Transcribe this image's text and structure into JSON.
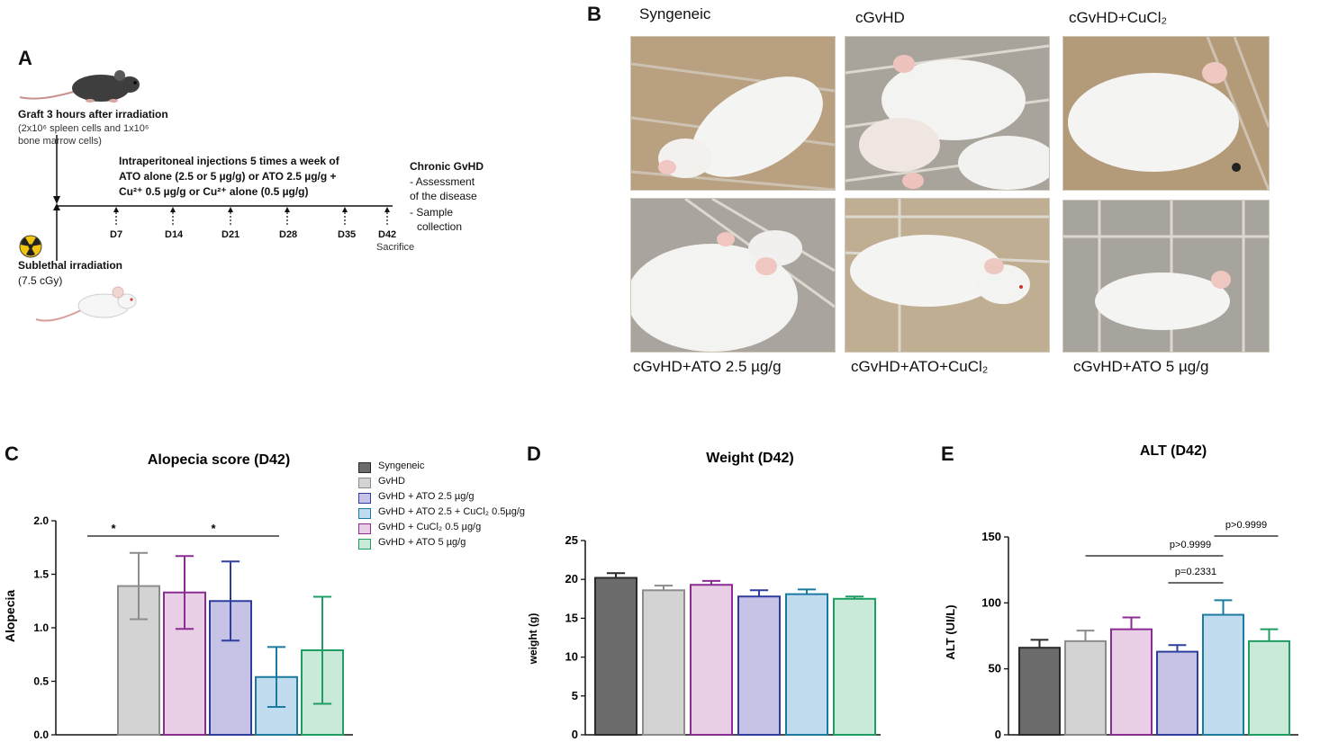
{
  "panels": {
    "a": "A",
    "b": "B",
    "c": "C",
    "d": "D",
    "e": "E"
  },
  "panel_a": {
    "graft_title": "Graft 3 hours after irradiation",
    "graft_cells_line1": "(2x10⁶ spleen cells and 1x10⁶",
    "graft_cells_line2": "bone marrow cells)",
    "injection_line1": "Intraperitoneal injections 5 times a week of",
    "injection_line2": "ATO alone (2.5 or 5 µg/g) or ATO 2.5 µg/g +",
    "injection_line3": "Cu²⁺ 0.5 µg/g or Cu²⁺ alone (0.5 µg/g)",
    "chronic_title": "Chronic GvHD",
    "chronic_line1": "- Assessment",
    "chronic_line2": "of the disease",
    "chronic_line3": "- Sample",
    "chronic_line4": "collection",
    "days": [
      "D7",
      "D14",
      "D21",
      "D28",
      "D35",
      "D42"
    ],
    "sacrifice": "Sacrifice",
    "irradiation_title": "Sublethal irradiation",
    "irradiation_dose": "(7.5 cGy)"
  },
  "panel_b": {
    "labels": [
      "Syngeneic",
      "cGvHD",
      "cGvHD+CuCl₂",
      "cGvHD+ATO 2.5 µg/g",
      "cGvHD+ATO+CuCl₂",
      "cGvHD+ATO 5 µg/g"
    ]
  },
  "legend": {
    "items": [
      "Syngeneic",
      "GvHD",
      "GvHD + ATO 2.5 µg/g",
      "GvHD + ATO 2.5 + CuCl₂ 0.5µg/g",
      "GvHD + CuCl₂ 0.5 µg/g",
      "GvHD + ATO 5 µg/g"
    ]
  },
  "colors": {
    "syngeneic_fill": "#6b6b6b",
    "syngeneic_edge": "#2a2a2a",
    "gvhd_fill": "#d3d3d3",
    "gvhd_edge": "#8c8c8c",
    "ato25_fill": "#c7c3e6",
    "ato25_edge": "#2f3e9e",
    "atocu_fill": "#c2dcef",
    "atocu_edge": "#1b7aa0",
    "cu_fill": "#e8cfe6",
    "cu_edge": "#8a2c91",
    "ato5_fill": "#c9e9d9",
    "ato5_edge": "#1f9d63"
  },
  "chart_data": [
    {
      "type": "bar",
      "title": "Alopecia score (D42)",
      "ylabel": "Alopecia",
      "ylim": [
        0,
        2.0
      ],
      "yticks": [
        "0.0",
        "0.5",
        "1.0",
        "1.5",
        "2.0"
      ],
      "categories": [
        "GvHD",
        "GvHD + CuCl₂ 0.5 µg/g",
        "GvHD + ATO 2.5 µg/g",
        "GvHD + ATO 2.5 + CuCl₂ 0.5µg/g",
        "GvHD + ATO 5 µg/g"
      ],
      "values": [
        1.39,
        1.33,
        1.25,
        0.54,
        0.79
      ],
      "errors": [
        0.31,
        0.34,
        0.37,
        0.28,
        0.5
      ],
      "annotations": [
        "*",
        "*"
      ]
    },
    {
      "type": "bar",
      "title": "Weight (D42)",
      "ylabel": "weight (g)",
      "ylim": [
        0,
        25
      ],
      "yticks": [
        "0",
        "5",
        "10",
        "15",
        "20",
        "25"
      ],
      "categories": [
        "Syngeneic",
        "GvHD",
        "GvHD + CuCl₂ 0.5 µg/g",
        "GvHD + ATO 2.5 µg/g",
        "GvHD + ATO 2.5 + CuCl₂ 0.5µg/g",
        "GvHD + ATO 5 µg/g"
      ],
      "values": [
        20.2,
        18.6,
        19.3,
        17.8,
        18.1,
        17.5
      ],
      "errors": [
        0.6,
        0.6,
        0.5,
        0.8,
        0.6,
        0.3
      ]
    },
    {
      "type": "bar",
      "title": "ALT (D42)",
      "ylabel": "ALT (UI/L)",
      "ylim": [
        0,
        150
      ],
      "yticks": [
        "0",
        "50",
        "100",
        "150"
      ],
      "categories": [
        "Syngeneic",
        "GvHD",
        "GvHD + CuCl₂ 0.5 µg/g",
        "GvHD + ATO 2.5 µg/g",
        "GvHD + ATO 2.5 + CuCl₂ 0.5µg/g",
        "GvHD + ATO 5 µg/g"
      ],
      "values": [
        66,
        71,
        80,
        63,
        91,
        71
      ],
      "errors": [
        6,
        8,
        9,
        5,
        11,
        9
      ],
      "annotations": [
        "p>0.9999",
        "p=0.2331",
        "p>0.9999"
      ]
    }
  ]
}
